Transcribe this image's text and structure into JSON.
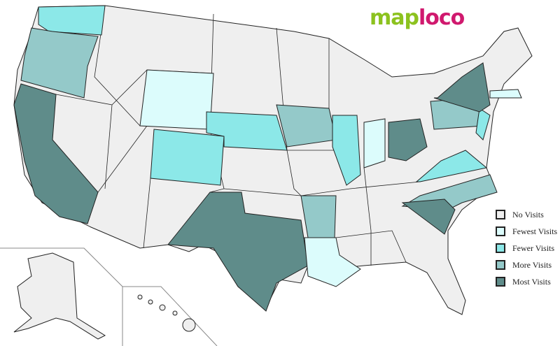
{
  "logo": {
    "part1": "map",
    "part2": "loco"
  },
  "colors": {
    "none": "#efefef",
    "fewest": "#dcfcfc",
    "fewer": "#8ce8e8",
    "more": "#94c9c9",
    "most": "#5f8c8a"
  },
  "legend": [
    {
      "key": "none",
      "label": "No Visits"
    },
    {
      "key": "fewest",
      "label": "Fewest Visits"
    },
    {
      "key": "fewer",
      "label": "Fewer Visits"
    },
    {
      "key": "more",
      "label": "More Visits"
    },
    {
      "key": "most",
      "label": "Most Visits"
    }
  ],
  "states": {
    "WA": "fewer",
    "OR": "more",
    "CA": "most",
    "WY": "fewest",
    "CO": "fewer",
    "NE": "fewer",
    "IA": "more",
    "IL": "fewer",
    "IN": "fewest",
    "OH": "most",
    "TX": "most",
    "AR": "more",
    "LA": "fewest",
    "NC": "more",
    "SC": "most",
    "VA": "fewer",
    "PA": "more",
    "NJ": "fewer",
    "NY": "most",
    "MA": "fewest"
  }
}
